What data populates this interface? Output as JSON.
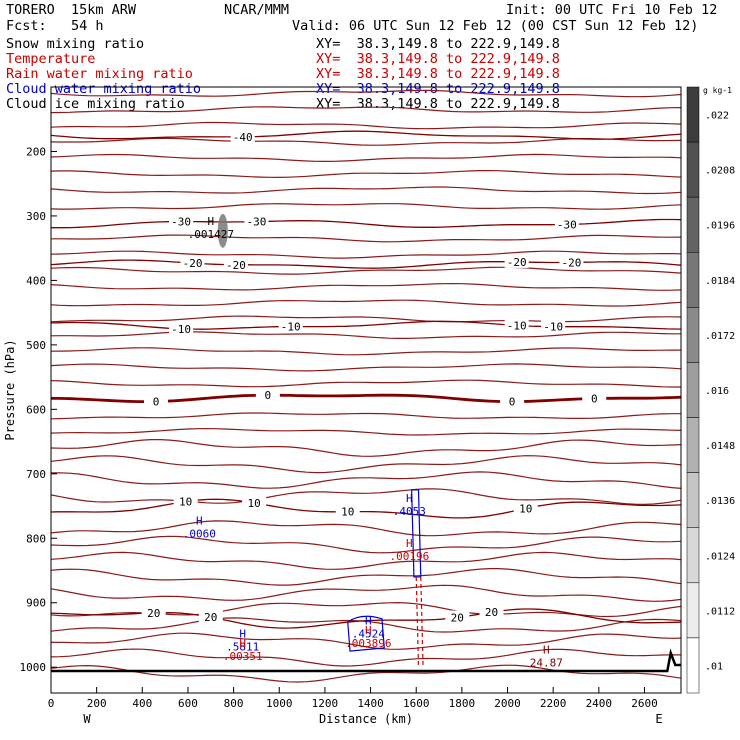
{
  "header": {
    "model": "TORERO  15km ARW",
    "center": "NCAR/MMM",
    "init": "Init: 00 UTC Fri 10 Feb 12",
    "fcst": "Fcst:   54 h",
    "valid": "Valid: 06 UTC Sun 12 Feb 12 (00 CST Sun 12 Feb 12)"
  },
  "legend_lines": [
    {
      "label": "Snow mixing ratio",
      "xy": "XY=  38.3,149.8 to 222.9,149.8",
      "color": "#000000"
    },
    {
      "label": "Temperature",
      "xy": "XY=  38.3,149.8 to 222.9,149.8",
      "color": "#cc0000"
    },
    {
      "label": "Rain water mixing ratio",
      "xy": "XY=  38.3,149.8 to 222.9,149.8",
      "color": "#cc0000"
    },
    {
      "label": "Cloud water mixing ratio",
      "xy": "XY=  38.3,149.8 to 222.9,149.8",
      "color": "#0000cc"
    },
    {
      "label": "Cloud ice mixing ratio",
      "xy": "XY=  38.3,149.8 to 222.9,149.8",
      "color": "#000000"
    }
  ],
  "chart_data": {
    "type": "line",
    "title": "",
    "xlabel": "Distance (km)",
    "ylabel": "Pressure (hPa)",
    "xlim": [
      0,
      2760
    ],
    "ylim": [
      1040,
      100
    ],
    "x_ticks": [
      0,
      200,
      400,
      600,
      800,
      1000,
      1200,
      1400,
      1600,
      1800,
      2000,
      2200,
      2400,
      2600
    ],
    "y_ticks": [
      200,
      300,
      400,
      500,
      600,
      700,
      800,
      900,
      1000
    ],
    "x_end_labels": {
      "left": "W",
      "right": "E"
    },
    "temperature_contours": [
      {
        "label": "-40",
        "p": 175,
        "label_x": [
          840
        ]
      },
      {
        "label": "-30",
        "p": 312,
        "label_x": [
          570,
          900,
          2260
        ]
      },
      {
        "label": "-20",
        "p": 375,
        "label_x": [
          620,
          810,
          2040,
          2280
        ]
      },
      {
        "label": "-10",
        "p": 470,
        "label_x": [
          570,
          1050,
          2040,
          2200
        ]
      },
      {
        "label": "0",
        "p": 582,
        "label_x": [
          460,
          950,
          2020,
          2380
        ],
        "bold": true
      },
      {
        "label": "10",
        "p": 755,
        "label_x": [
          590,
          890,
          1300,
          2080
        ]
      },
      {
        "label": "20",
        "p": 925,
        "label_x": [
          450,
          700,
          1780,
          1930
        ]
      }
    ],
    "color_scale": {
      "unit": "g kg-1",
      "levels": [
        ".022",
        ".0208",
        ".0196",
        ".0184",
        ".0172",
        ".016",
        ".0148",
        ".0136",
        ".0124",
        ".0112",
        ".01"
      ]
    },
    "annotations": [
      {
        "text": "H",
        "value": ".001427",
        "x": 700,
        "p": 320,
        "color": "#000000"
      },
      {
        "text": "H",
        "value": ".0060",
        "x": 650,
        "p": 785,
        "color": "#0000cc"
      },
      {
        "text": "H",
        "value": ".4053",
        "x": 1570,
        "p": 750,
        "color": "#0000cc"
      },
      {
        "text": "H",
        "value": ".00196",
        "x": 1570,
        "p": 820,
        "color": "#cc0000"
      },
      {
        "text": "H",
        "value": ".4524",
        "x": 1390,
        "p": 940,
        "color": "#0000cc"
      },
      {
        "text": "H",
        "value": ".003896",
        "x": 1390,
        "p": 955,
        "color": "#cc0000"
      },
      {
        "text": "H",
        "value": ".5811",
        "x": 840,
        "p": 960,
        "color": "#0000cc"
      },
      {
        "text": "H",
        "value": ".00351",
        "x": 840,
        "p": 975,
        "color": "#cc0000"
      },
      {
        "text": "H",
        "value": "24.87",
        "x": 2170,
        "p": 985,
        "color": "#800000"
      }
    ]
  }
}
